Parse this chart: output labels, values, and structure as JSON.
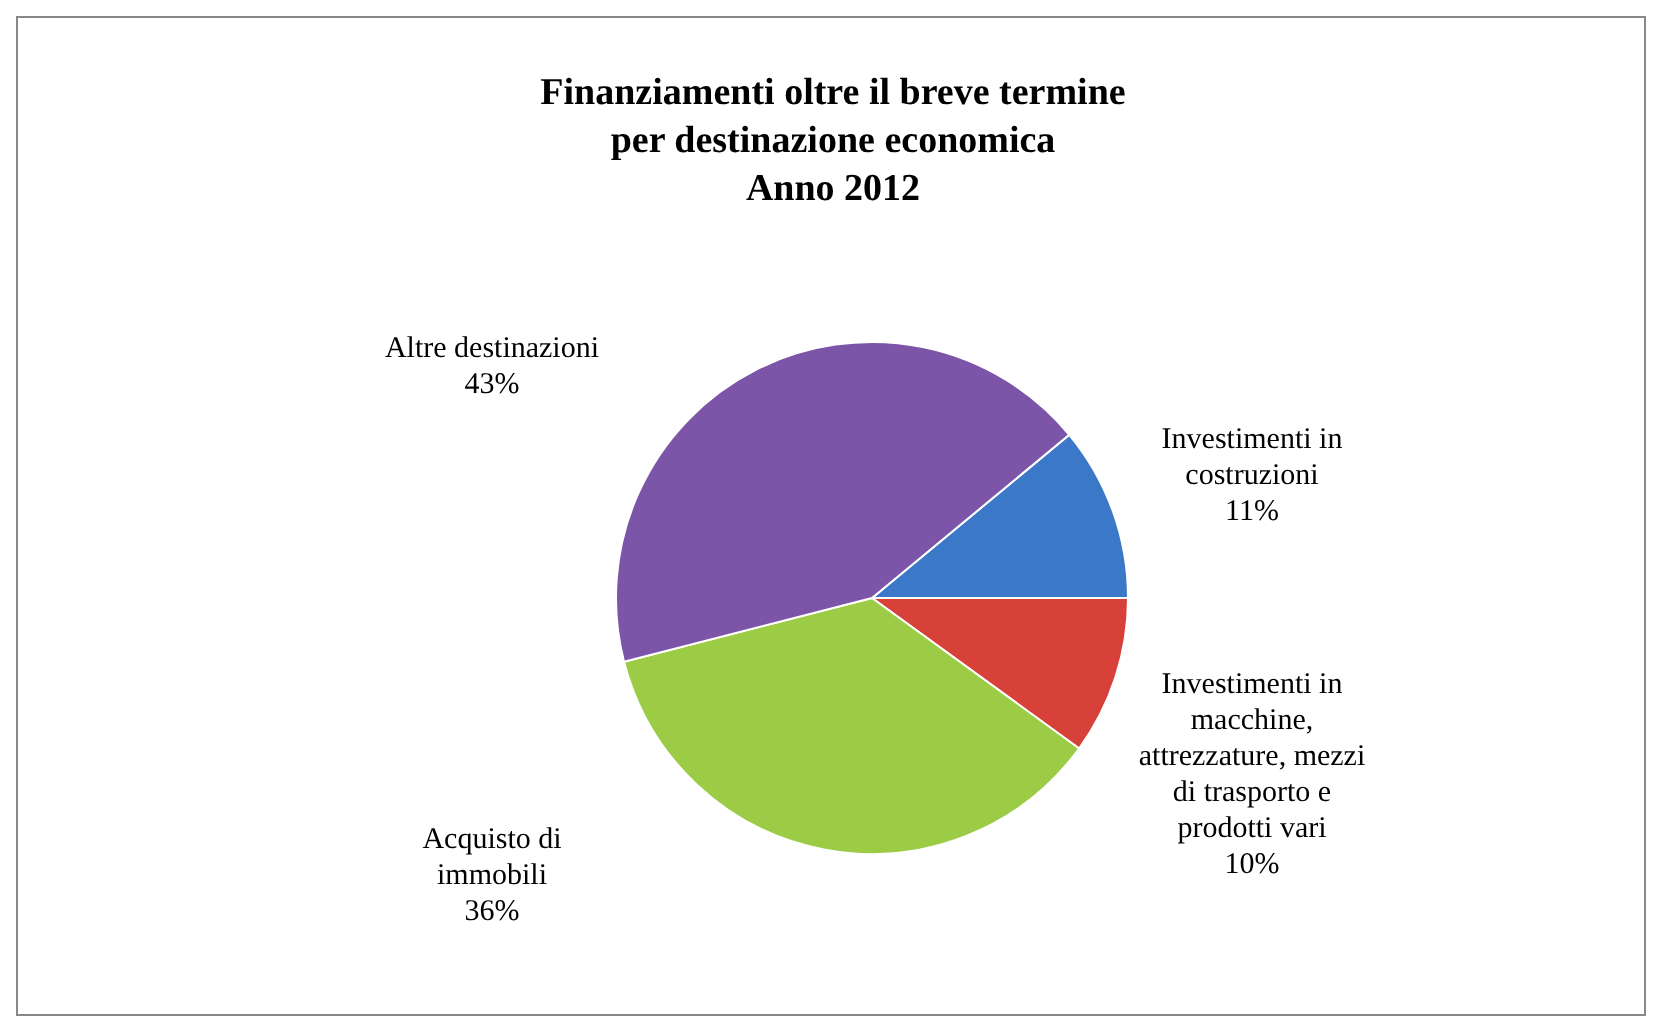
{
  "chart_data": {
    "type": "pie",
    "title": "Finanziamenti oltre il breve termine\nper destinazione economica\nAnno 2012",
    "categories": [
      "Investimenti in costruzioni",
      "Investimenti in macchine, attrezzature, mezzi di trasporto e prodotti vari",
      "Acquisto di immobili",
      "Altre destinazioni"
    ],
    "values": [
      11,
      10,
      36,
      43
    ],
    "colors": [
      "#3b78c8",
      "#d8403a",
      "#9ccc45",
      "#7d55a8"
    ],
    "value_labels": [
      "11%",
      "10%",
      "36%",
      "43%"
    ]
  }
}
